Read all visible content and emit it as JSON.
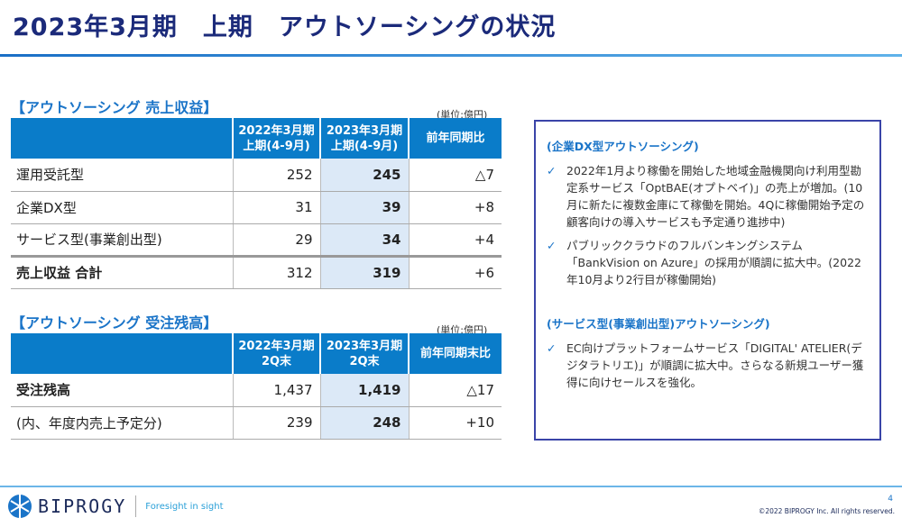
{
  "title": "2023年3月期　上期　アウトソーシングの状況",
  "revenue": {
    "heading": "【アウトソーシング  売上収益】",
    "unit": "(単位:億円)",
    "headers": [
      {
        "l1": "",
        "l2": ""
      },
      {
        "l1": "2022年3月期",
        "l2": "上期(4-9月)"
      },
      {
        "l1": "2023年3月期",
        "l2": "上期(4-9月)"
      },
      {
        "l1": "前年同期比",
        "l2": ""
      }
    ],
    "rows": [
      [
        "運用受託型",
        "252",
        "245",
        "△7"
      ],
      [
        "企業DX型",
        "31",
        "39",
        "+8"
      ],
      [
        "サービス型(事業創出型)",
        "29",
        "34",
        "+4"
      ],
      [
        "売上収益  合計",
        "312",
        "319",
        "+6"
      ]
    ]
  },
  "backlog": {
    "heading": "【アウトソーシング  受注残高】",
    "unit": "(単位:億円)",
    "headers": [
      {
        "l1": "",
        "l2": ""
      },
      {
        "l1": "2022年3月期",
        "l2": "2Q末"
      },
      {
        "l1": "2023年3月期",
        "l2": "2Q末"
      },
      {
        "l1": "前年同期末比",
        "l2": ""
      }
    ],
    "rows": [
      [
        "受注残高",
        "1,437",
        "1,419",
        "△17"
      ],
      [
        "(内、年度内売上予定分)",
        "239",
        "248",
        "+10"
      ]
    ]
  },
  "notes": {
    "dx_heading": "(企業DX型アウトソーシング)",
    "dx_items": [
      "2022年1月より稼働を開始した地域金融機関向け利用型勘定系サービス「OptBAE(オプトベイ)」の売上が増加。(10月に新たに複数金庫にて稼働を開始。4Qに稼働開始予定の顧客向けの導入サービスも予定通り進捗中)",
      "パブリッククラウドのフルバンキングシステム「BankVision on Azure」の採用が順調に拡大中。(2022年10月より2行目が稼働開始)"
    ],
    "svc_heading": "(サービス型(事業創出型)アウトソーシング)",
    "svc_items": [
      "EC向けプラットフォームサービス「DIGITAL' ATELIER(デジタラトリエ)」が順調に拡大中。さらなる新規ユーザー獲得に向けセールスを強化。"
    ]
  },
  "footer": {
    "brand": "BIPROGY",
    "tagline": "Foresight in sight",
    "page": "4",
    "copyright": "©2022 BIPROGY Inc. All rights reserved."
  }
}
